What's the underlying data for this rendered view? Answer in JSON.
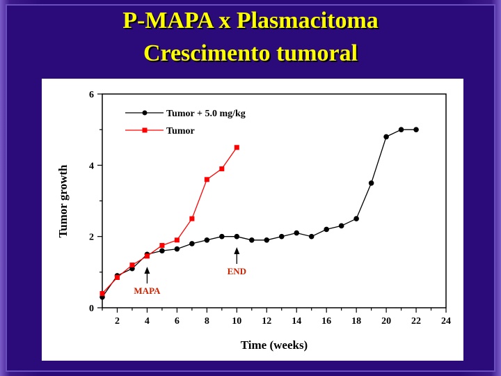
{
  "slide": {
    "title_line1": "P-MAPA x  Plasmacitoma",
    "title_line2": "Crescimento tumoral"
  },
  "colors": {
    "background": "#2b0b7a",
    "title": "#ffff00",
    "series_treated": "#000000",
    "series_tumor": "#ff0000",
    "annotation": "#cc2200"
  },
  "chart_data": {
    "type": "line",
    "title": "",
    "xlabel": "Time (weeks)",
    "ylabel": "Tumor growth",
    "xlim": [
      1,
      24
    ],
    "ylim": [
      0,
      6
    ],
    "xticks": [
      2,
      4,
      6,
      8,
      10,
      12,
      14,
      16,
      18,
      20,
      22,
      24
    ],
    "yticks": [
      0,
      2,
      4,
      6
    ],
    "legend_position": "top-left",
    "series": [
      {
        "name": "Tumor + 5.0 mg/kg",
        "color": "#000000",
        "marker": "circle",
        "x": [
          1,
          2,
          3,
          4,
          5,
          6,
          7,
          8,
          9,
          10,
          11,
          12,
          13,
          14,
          15,
          16,
          17,
          18,
          19,
          20,
          21,
          22
        ],
        "y": [
          0.3,
          0.9,
          1.1,
          1.5,
          1.6,
          1.65,
          1.8,
          1.9,
          2.0,
          2.0,
          1.9,
          1.9,
          2.0,
          2.1,
          2.0,
          2.2,
          2.3,
          2.5,
          3.5,
          4.8,
          5.0,
          5.0
        ]
      },
      {
        "name": "Tumor",
        "color": "#ff0000",
        "marker": "square",
        "x": [
          1,
          2,
          3,
          4,
          5,
          6,
          7,
          8,
          9,
          10
        ],
        "y": [
          0.4,
          0.85,
          1.2,
          1.45,
          1.75,
          1.9,
          2.5,
          3.6,
          3.9,
          4.5
        ]
      }
    ],
    "annotations": [
      {
        "text": "MAPA",
        "x": 4,
        "y": 1.15
      },
      {
        "text": "END",
        "x": 10,
        "y": 1.7
      }
    ]
  }
}
